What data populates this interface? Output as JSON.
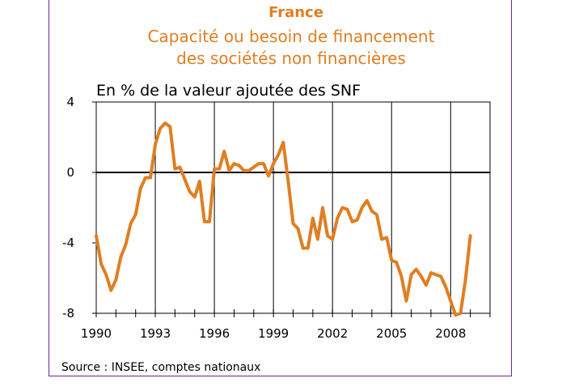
{
  "chart_data": {
    "type": "line",
    "title": "France",
    "subtitle": [
      "Capacité ou besoin de financement",
      "des sociétés non financières"
    ],
    "ylabel": "En % de la valeur ajoutée des SNF",
    "source": "Source : INSEE, comptes nationaux",
    "ylim": [
      -8,
      4
    ],
    "xlim": [
      1990,
      2010
    ],
    "yticks": [
      4,
      0,
      -4,
      -8
    ],
    "xticks": [
      1990,
      1993,
      1996,
      1999,
      2002,
      2005,
      2008
    ],
    "grid": true,
    "line_color": "#e07e22",
    "series": [
      {
        "x": [
          1990.0,
          1990.25,
          1990.5,
          1990.75,
          1991.0,
          1991.25,
          1991.5,
          1991.75,
          1992.0,
          1992.25,
          1992.5,
          1992.75,
          1993.0,
          1993.25,
          1993.5,
          1993.75,
          1994.0,
          1994.25,
          1994.5,
          1994.75,
          1995.0,
          1995.25,
          1995.5,
          1995.75,
          1996.0,
          1996.25,
          1996.5,
          1996.75,
          1997.0,
          1997.25,
          1997.5,
          1997.75,
          1998.0,
          1998.25,
          1998.5,
          1998.75,
          1999.0,
          1999.25,
          1999.5,
          1999.75,
          2000.0,
          2000.25,
          2000.5,
          2000.75,
          2001.0,
          2001.25,
          2001.5,
          2001.75,
          2002.0,
          2002.25,
          2002.5,
          2002.75,
          2003.0,
          2003.25,
          2003.5,
          2003.75,
          2004.0,
          2004.25,
          2004.5,
          2004.75,
          2005.0,
          2005.25,
          2005.5,
          2005.75,
          2006.0,
          2006.25,
          2006.5,
          2006.75,
          2007.0,
          2007.25,
          2007.5,
          2007.75,
          2008.0,
          2008.25,
          2008.5,
          2008.75,
          2009.0
        ],
        "values": [
          -3.6,
          -5.2,
          -5.8,
          -6.7,
          -6.1,
          -4.8,
          -4.1,
          -2.9,
          -2.4,
          -0.9,
          -0.3,
          -0.3,
          1.6,
          2.5,
          2.8,
          2.6,
          0.2,
          0.3,
          -0.4,
          -1.1,
          -1.4,
          -0.5,
          -2.8,
          -2.8,
          0.2,
          0.2,
          1.2,
          0.1,
          0.5,
          0.4,
          0.1,
          0.1,
          0.3,
          0.5,
          0.5,
          -0.2,
          0.5,
          1.0,
          1.7,
          -0.5,
          -2.9,
          -3.2,
          -4.3,
          -4.3,
          -2.6,
          -3.8,
          -2.0,
          -3.6,
          -3.8,
          -2.6,
          -2.0,
          -2.1,
          -2.8,
          -2.7,
          -2.0,
          -1.6,
          -2.2,
          -2.4,
          -3.8,
          -3.7,
          -5.0,
          -5.1,
          -5.9,
          -7.3,
          -5.8,
          -5.5,
          -5.9,
          -6.4,
          -5.7,
          -5.8,
          -5.9,
          -6.5,
          -7.3,
          -8.1,
          -8.0,
          -6.1,
          -3.6
        ]
      }
    ]
  }
}
